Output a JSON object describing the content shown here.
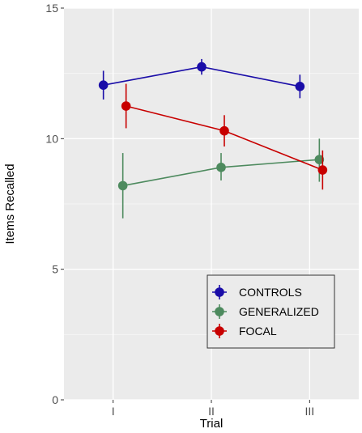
{
  "chart_data": {
    "type": "line",
    "xlabel": "Trial",
    "ylabel": "Items Recalled",
    "categories": [
      "I",
      "II",
      "III"
    ],
    "ylim": [
      0,
      15
    ],
    "yticks": [
      0,
      5,
      10,
      15
    ],
    "grid": true,
    "error_bars": true,
    "legend_position": "bottom-right",
    "series": [
      {
        "name": "CONTROLS",
        "color": "#1a0da8",
        "values": [
          12.05,
          12.75,
          12.0
        ],
        "lower": [
          11.5,
          12.45,
          11.55
        ],
        "upper": [
          12.6,
          13.05,
          12.45
        ]
      },
      {
        "name": "GENERALIZED",
        "color": "#4d8a5e",
        "values": [
          8.2,
          8.9,
          9.2
        ],
        "lower": [
          6.95,
          8.4,
          8.35
        ],
        "upper": [
          9.45,
          9.45,
          10.0
        ]
      },
      {
        "name": "FOCAL",
        "color": "#c80000",
        "values": [
          11.25,
          10.3,
          8.8
        ],
        "lower": [
          10.4,
          9.7,
          8.05
        ],
        "upper": [
          12.1,
          10.9,
          9.55
        ]
      }
    ]
  }
}
